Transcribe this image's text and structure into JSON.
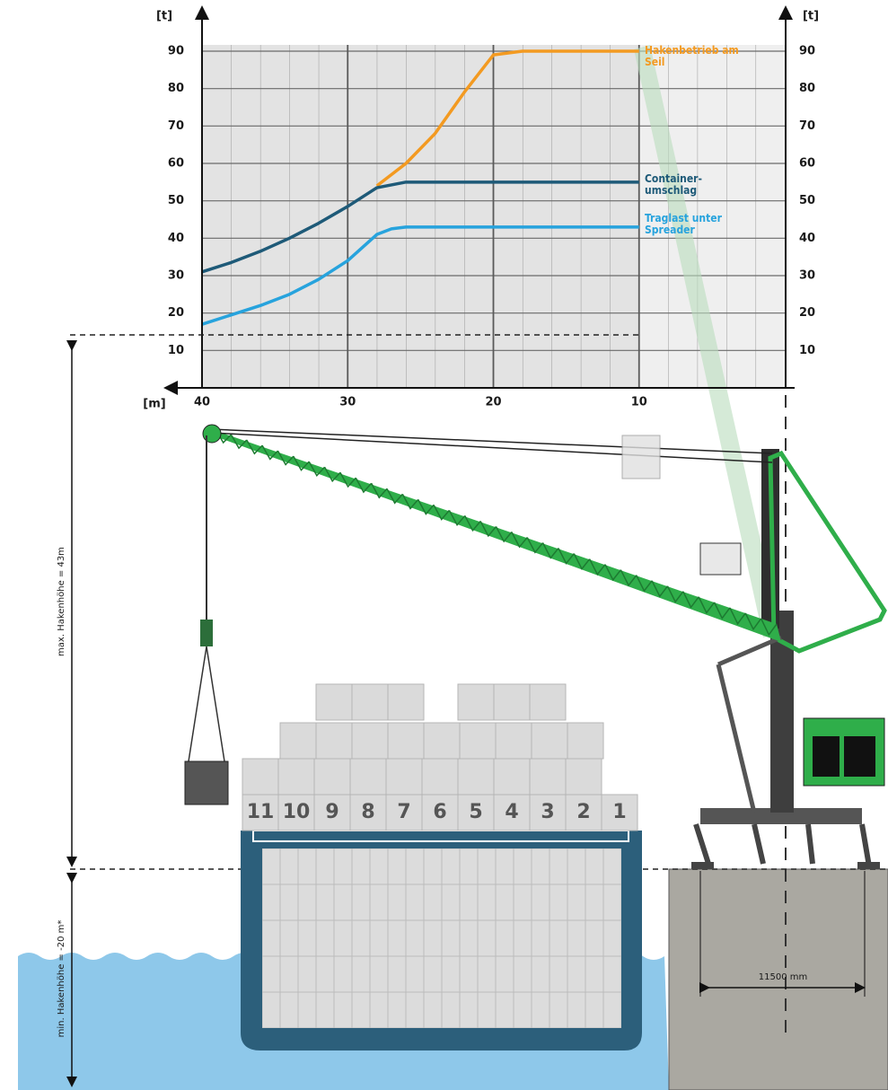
{
  "chart_data": {
    "type": "line",
    "ylabel": "[t]",
    "xlabel": "[m]",
    "xlim": [
      40,
      0
    ],
    "xticks": [
      40,
      30,
      20,
      10
    ],
    "ylim": [
      0,
      90
    ],
    "yticks": [
      10,
      20,
      30,
      40,
      50,
      60,
      70,
      80,
      90
    ],
    "grid": true,
    "series": [
      {
        "name": "Hakenbetrieb am Seil",
        "color": "#f39a21",
        "x": [
          28,
          26,
          24,
          22,
          20,
          18,
          10
        ],
        "values": [
          54,
          60,
          68,
          79,
          89,
          90,
          90
        ]
      },
      {
        "name": "Container-umschlag",
        "color": "#1e5a78",
        "x": [
          40,
          38,
          36,
          34,
          32,
          30,
          28,
          26,
          10
        ],
        "values": [
          31,
          33.5,
          36.5,
          40,
          44,
          48.5,
          53.5,
          55,
          55
        ]
      },
      {
        "name": "Traglast unter Spreader",
        "color": "#27a3dd",
        "x": [
          40,
          36,
          34,
          32,
          30,
          28,
          27,
          26,
          10
        ],
        "values": [
          17,
          22,
          25,
          29,
          34,
          41,
          42.5,
          43,
          43
        ]
      }
    ]
  },
  "illustration": {
    "max_hook_height": "max. Hakenhöhe = 43m",
    "min_hook_height": "min. Hakenhöhe = -20 m*",
    "outrigger_width": "11500 mm",
    "bays": [
      "11",
      "10",
      "9",
      "8",
      "7",
      "6",
      "5",
      "4",
      "3",
      "2",
      "1"
    ]
  }
}
